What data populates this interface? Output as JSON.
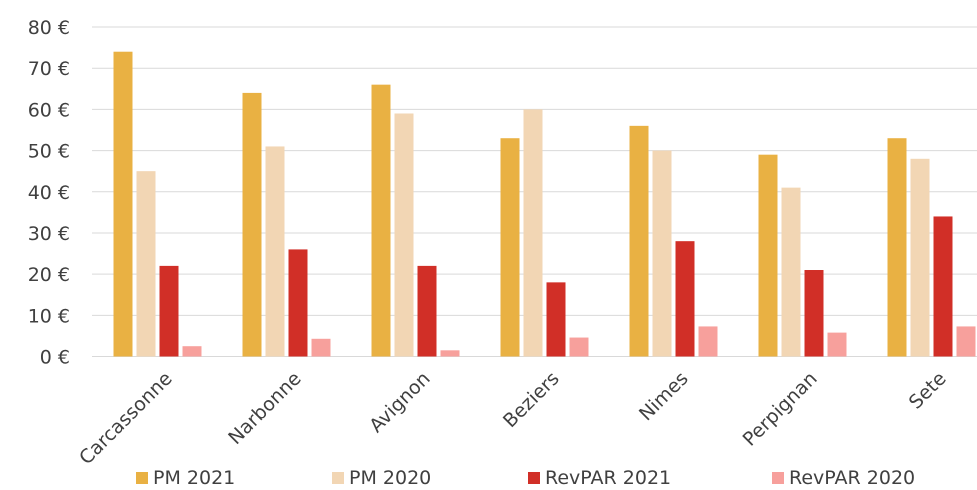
{
  "chart_data": {
    "type": "bar",
    "categories": [
      "Carcassonne",
      "Narbonne",
      "Avignon",
      "Beziers",
      "Nimes",
      "Perpignan",
      "Sete"
    ],
    "series": [
      {
        "name": "PM 2021",
        "color": "#E9B143",
        "values": [
          74,
          64,
          66,
          53,
          56,
          49,
          53
        ]
      },
      {
        "name": "PM 2020",
        "color": "#F2D6B4",
        "values": [
          45,
          51,
          59,
          60,
          50,
          41,
          48
        ]
      },
      {
        "name": "RevPAR 2021",
        "color": "#D12F27",
        "values": [
          22,
          26,
          22,
          18,
          28,
          21,
          34
        ]
      },
      {
        "name": "RevPAR 2020",
        "color": "#F7A09C",
        "values": [
          2.5,
          4.3,
          1.5,
          4.6,
          7.3,
          5.8,
          7.3
        ]
      }
    ],
    "ylim": [
      0,
      80
    ],
    "yticks": [
      "0 €",
      "10 €",
      "20 €",
      "30 €",
      "40 €",
      "50 €",
      "60 €",
      "70 €",
      "80 €"
    ],
    "ytick_values": [
      0,
      10,
      20,
      30,
      40,
      50,
      60,
      70,
      80
    ],
    "grid": true,
    "legend": "bottom"
  }
}
